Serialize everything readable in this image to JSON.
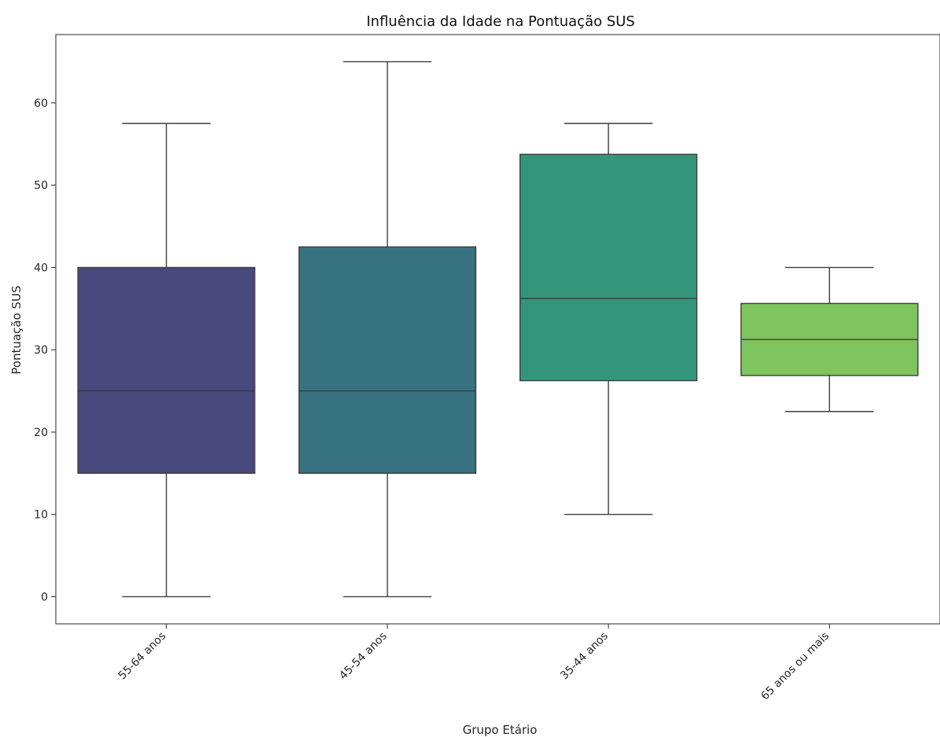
{
  "chart_data": {
    "type": "box",
    "title": "Influência da Idade na Pontuação SUS",
    "xlabel": "Grupo Etário",
    "ylabel": "Pontuação SUS",
    "ylim": [
      -3.3,
      68.3
    ],
    "yticks": [
      0,
      10,
      20,
      30,
      40,
      50,
      60
    ],
    "grid": false,
    "legend": "none",
    "categories": [
      "55-64 anos",
      "45-54 anos",
      "35-44 anos",
      "65 anos ou mais"
    ],
    "boxes": [
      {
        "category": "55-64 anos",
        "whisker_low": 0,
        "q1": 15,
        "median": 25,
        "q3": 40,
        "whisker_high": 57.5,
        "color": "#48497d"
      },
      {
        "category": "45-54 anos",
        "whisker_low": 0,
        "q1": 15,
        "median": 25,
        "q3": 42.5,
        "whisker_high": 65,
        "color": "#377280"
      },
      {
        "category": "35-44 anos",
        "whisker_low": 10,
        "q1": 26.25,
        "median": 36.25,
        "q3": 53.75,
        "whisker_high": 57.5,
        "color": "#33967a"
      },
      {
        "category": "65 anos ou mais",
        "whisker_low": 22.5,
        "q1": 26.875,
        "median": 31.25,
        "q3": 35.625,
        "whisker_high": 40,
        "color": "#7ec45f"
      }
    ]
  }
}
